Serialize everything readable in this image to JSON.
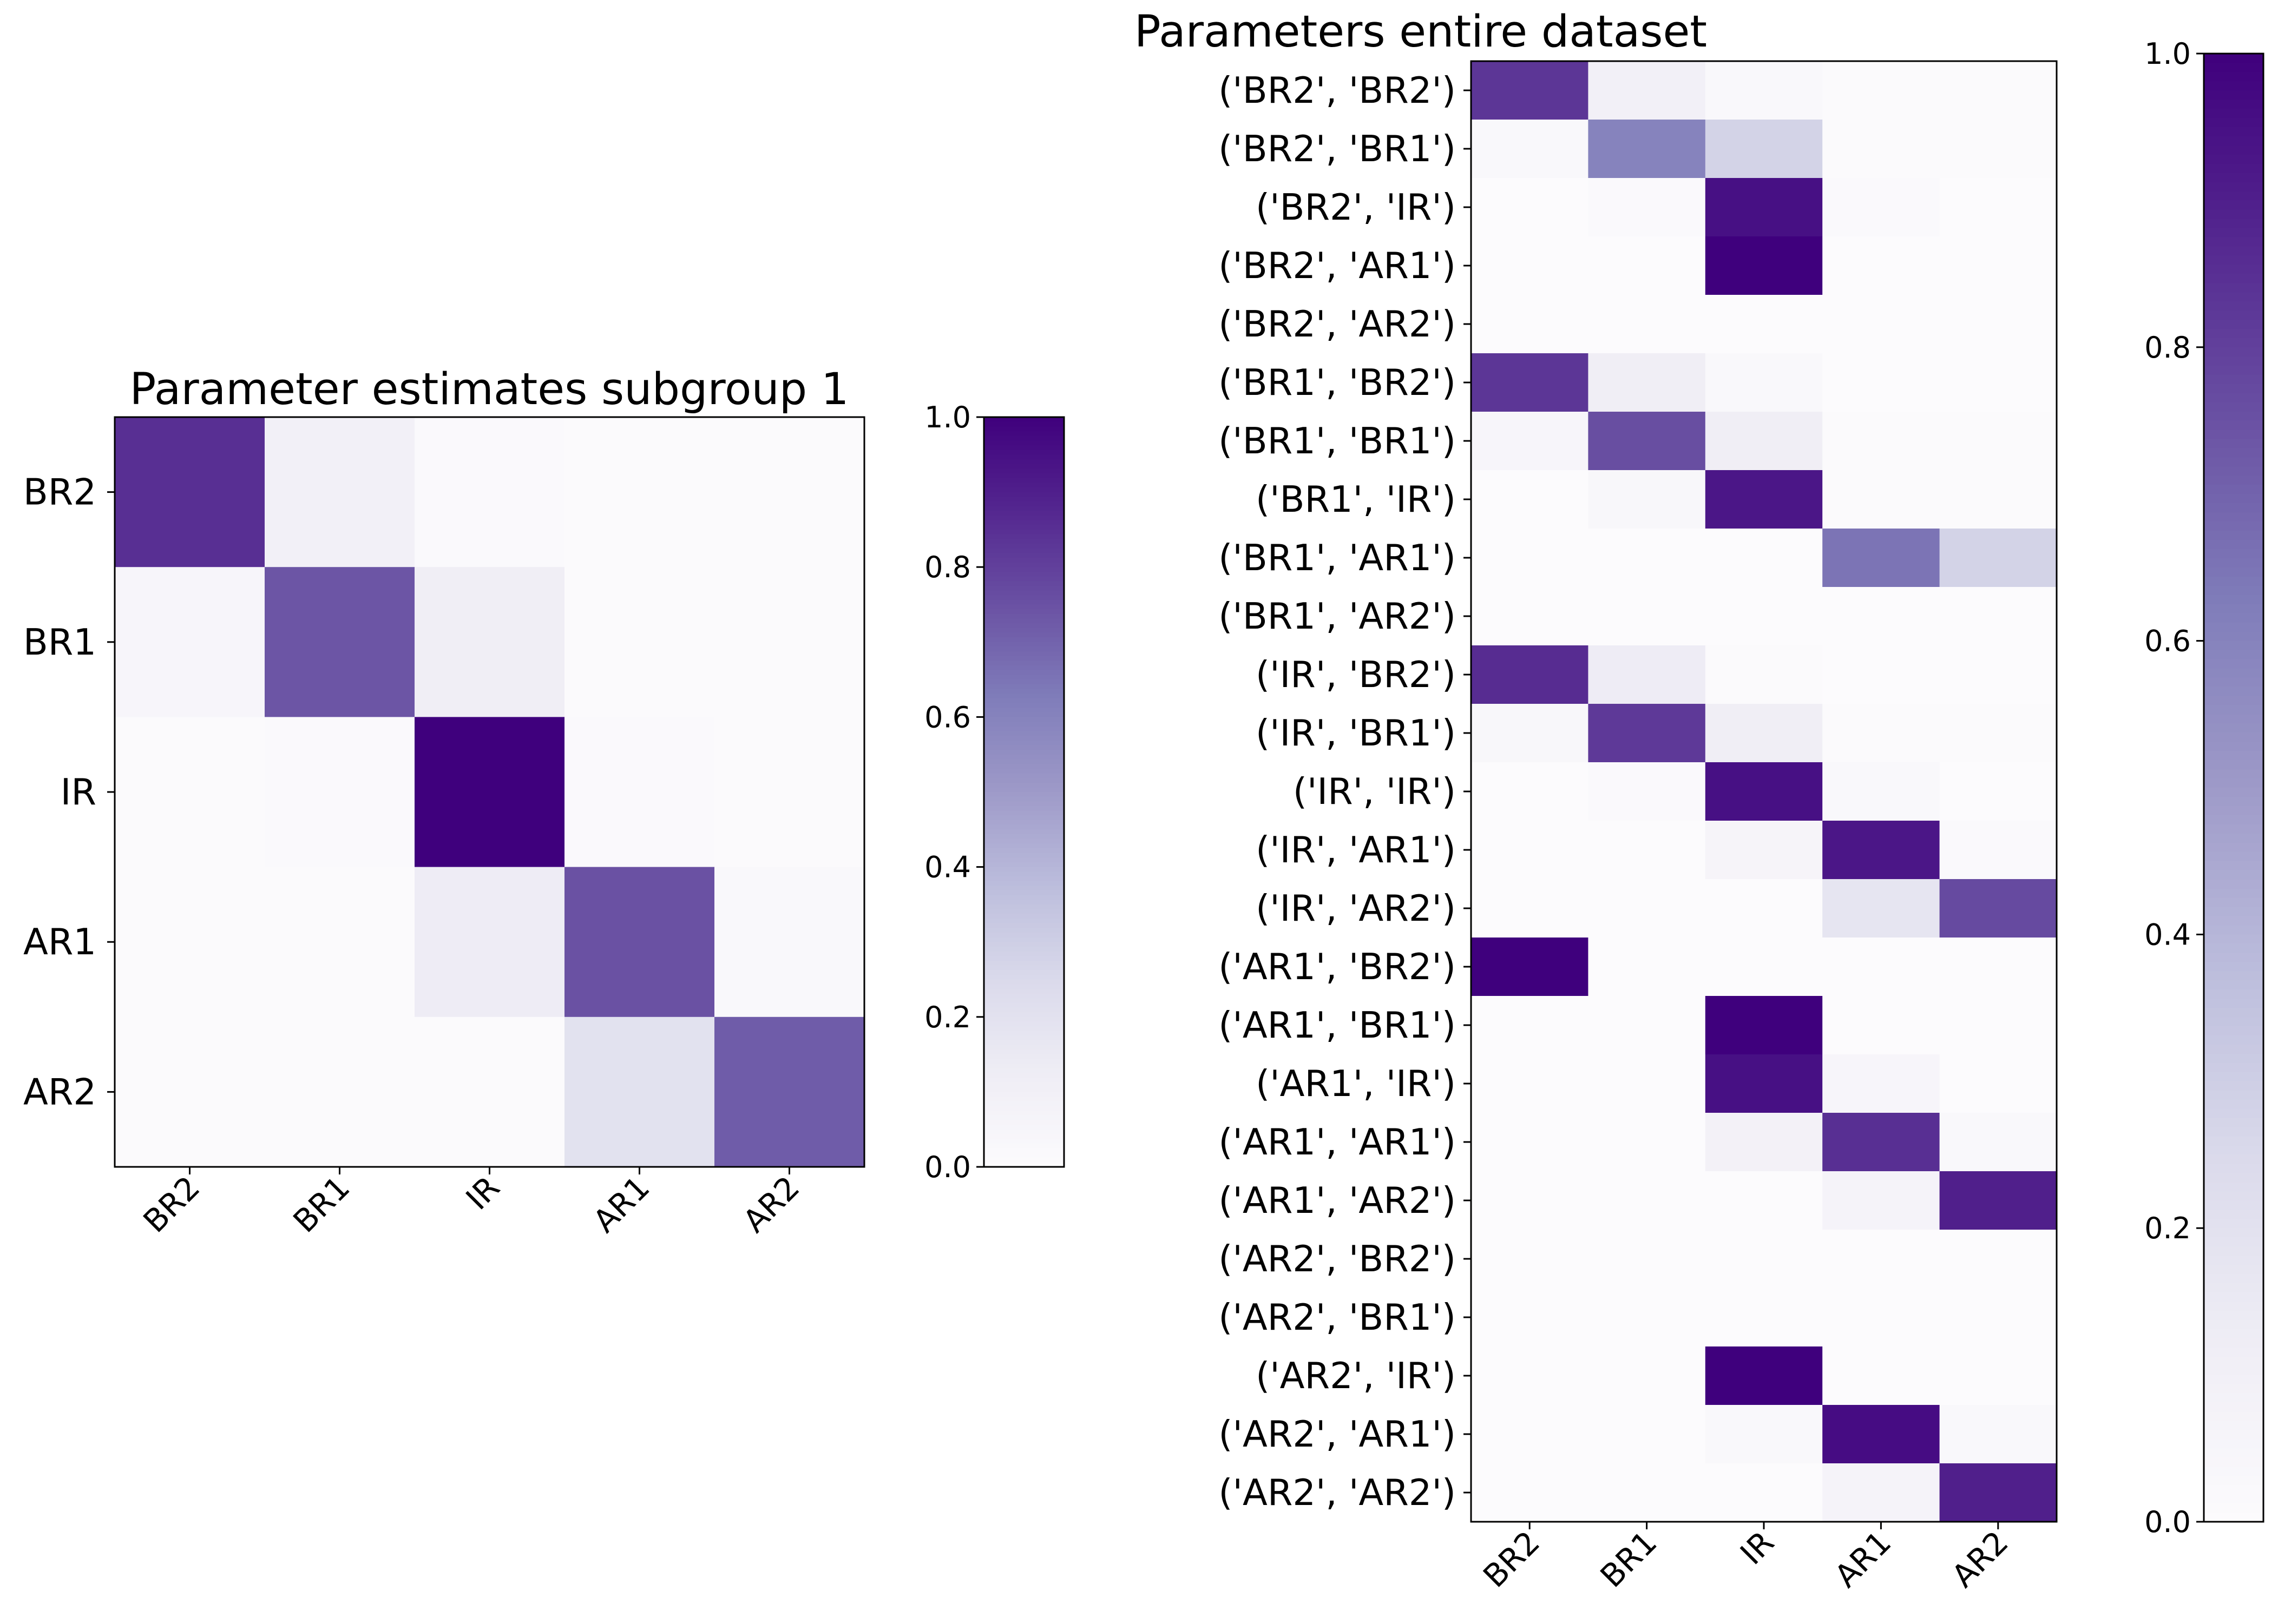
{
  "colors": {
    "low": "#fcfbfd",
    "mid": "#7b76b8",
    "high": "#3f007d",
    "frame": "#000000"
  },
  "chart_data": [
    {
      "type": "heatmap",
      "title": "Parameter estimates subgroup 1",
      "x_categories": [
        "BR2",
        "BR1",
        "IR",
        "AR1",
        "AR2"
      ],
      "y_categories": [
        "BR2",
        "BR1",
        "IR",
        "AR1",
        "AR2"
      ],
      "values": [
        [
          0.85,
          0.1,
          0.02,
          0.01,
          0.01
        ],
        [
          0.05,
          0.74,
          0.12,
          0.01,
          0.01
        ],
        [
          0.01,
          0.02,
          1.0,
          0.02,
          0.01
        ],
        [
          0.01,
          0.01,
          0.13,
          0.75,
          0.03
        ],
        [
          0.01,
          0.01,
          0.01,
          0.2,
          0.72
        ]
      ],
      "colorbar": {
        "range": [
          0,
          1
        ],
        "ticks": [
          "0.0",
          "0.2",
          "0.4",
          "0.6",
          "0.8",
          "1.0"
        ]
      },
      "colormap": "Purples"
    },
    {
      "type": "heatmap",
      "title": "Parameters entire dataset",
      "x_categories": [
        "BR2",
        "BR1",
        "IR",
        "AR1",
        "AR2"
      ],
      "y_categories": [
        "('BR2', 'BR2')",
        "('BR2', 'BR1')",
        "('BR2', 'IR')",
        "('BR2', 'AR1')",
        "('BR2', 'AR2')",
        "('BR1', 'BR2')",
        "('BR1', 'BR1')",
        "('BR1', 'IR')",
        "('BR1', 'AR1')",
        "('BR1', 'AR2')",
        "('IR', 'BR2')",
        "('IR', 'BR1')",
        "('IR', 'IR')",
        "('IR', 'AR1')",
        "('IR', 'AR2')",
        "('AR1', 'BR2')",
        "('AR1', 'BR1')",
        "('AR1', 'IR')",
        "('AR1', 'AR1')",
        "('AR1', 'AR2')",
        "('AR2', 'BR2')",
        "('AR2', 'BR1')",
        "('AR2', 'IR')",
        "('AR2', 'AR1')",
        "('AR2', 'AR2')"
      ],
      "values": [
        [
          0.83,
          0.1,
          0.03,
          0.01,
          0.01
        ],
        [
          0.03,
          0.6,
          0.28,
          0.01,
          0.01
        ],
        [
          0.0,
          0.02,
          0.95,
          0.02,
          0.0
        ],
        [
          0.0,
          0.0,
          1.0,
          0.0,
          0.0
        ],
        [
          0.0,
          0.0,
          0.0,
          0.0,
          0.0
        ],
        [
          0.83,
          0.12,
          0.03,
          0.0,
          0.0
        ],
        [
          0.05,
          0.76,
          0.12,
          0.01,
          0.01
        ],
        [
          0.0,
          0.04,
          0.93,
          0.01,
          0.01
        ],
        [
          0.0,
          0.0,
          0.0,
          0.65,
          0.28
        ],
        [
          0.0,
          0.0,
          0.0,
          0.0,
          0.0
        ],
        [
          0.86,
          0.13,
          0.01,
          0.0,
          0.0
        ],
        [
          0.04,
          0.82,
          0.12,
          0.01,
          0.01
        ],
        [
          0.0,
          0.02,
          0.95,
          0.03,
          0.0
        ],
        [
          0.0,
          0.0,
          0.06,
          0.93,
          0.02
        ],
        [
          0.0,
          0.0,
          0.0,
          0.18,
          0.77
        ],
        [
          1.0,
          0.0,
          0.0,
          0.0,
          0.0
        ],
        [
          0.0,
          0.0,
          1.0,
          0.0,
          0.0
        ],
        [
          0.0,
          0.0,
          0.95,
          0.05,
          0.0
        ],
        [
          0.0,
          0.0,
          0.09,
          0.85,
          0.03
        ],
        [
          0.0,
          0.0,
          0.0,
          0.07,
          0.9
        ],
        [
          0.0,
          0.0,
          0.0,
          0.0,
          0.0
        ],
        [
          0.0,
          0.0,
          0.0,
          0.0,
          0.0
        ],
        [
          0.0,
          0.0,
          1.0,
          0.0,
          0.0
        ],
        [
          0.0,
          0.0,
          0.03,
          0.96,
          0.03
        ],
        [
          0.0,
          0.0,
          0.0,
          0.07,
          0.9
        ]
      ],
      "colorbar": {
        "range": [
          0,
          1
        ],
        "ticks": [
          "0.0",
          "0.2",
          "0.4",
          "0.6",
          "0.8",
          "1.0"
        ]
      },
      "colormap": "Purples"
    }
  ]
}
